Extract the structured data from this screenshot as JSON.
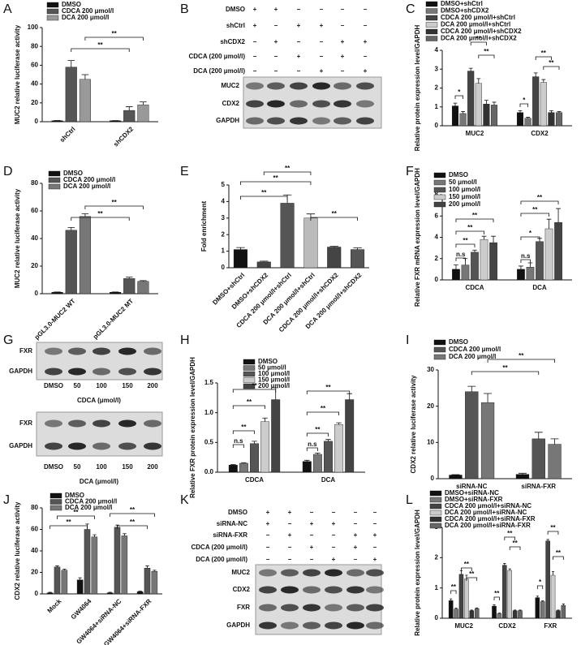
{
  "chart_data": [
    {
      "type": "bar",
      "label": "A",
      "ylabel": "MUC2 relative luciferase activity",
      "categories": [
        "shCtrl",
        "shCDX2"
      ],
      "series": [
        {
          "name": "DMSO",
          "color": "#111111",
          "values": [
            1,
            1
          ],
          "errors": [
            0.3,
            0.2
          ]
        },
        {
          "name": "CDCA 200 μmol/l",
          "color": "#555555",
          "values": [
            58,
            12
          ],
          "errors": [
            7,
            4
          ]
        },
        {
          "name": "DCA 200 μmol/l",
          "color": "#999999",
          "values": [
            45,
            18
          ],
          "errors": [
            5,
            3
          ]
        }
      ],
      "ylim": [
        0,
        100
      ],
      "yticks": [
        0,
        20,
        40,
        60,
        80,
        100
      ],
      "annotations": [
        "**",
        "**"
      ]
    },
    {
      "type": "blot",
      "label": "B",
      "treatments": [
        {
          "name": "DMSO",
          "signs": [
            "+",
            "+",
            "−",
            "−",
            "−",
            "−"
          ]
        },
        {
          "name": "shCtrl",
          "signs": [
            "+",
            "−",
            "+",
            "+",
            "−",
            "−"
          ]
        },
        {
          "name": "shCDX2",
          "signs": [
            "−",
            "+",
            "−",
            "−",
            "+",
            "+"
          ]
        },
        {
          "name": "CDCA  (200 μmol/l)",
          "signs": [
            "−",
            "−",
            "+",
            "−",
            "+",
            "−"
          ]
        },
        {
          "name": "DCA  (200 μmol/l)",
          "signs": [
            "−",
            "−",
            "−",
            "+",
            "−",
            "+"
          ]
        }
      ],
      "blots": [
        {
          "bands": [
            "MUC2",
            "CDX2",
            "GAPDH"
          ]
        }
      ]
    },
    {
      "type": "bar",
      "label": "C",
      "ylabel": "Relative protein expression level/GAPDH",
      "categories": [
        "MUC2",
        "CDX2"
      ],
      "series": [
        {
          "name": "DMSO+shCtrl",
          "color": "#111111",
          "values": [
            1.05,
            0.7
          ],
          "errors": [
            0.15,
            0.1
          ]
        },
        {
          "name": "DMSO+shCDX2",
          "color": "#777777",
          "values": [
            0.65,
            0.4
          ],
          "errors": [
            0.1,
            0.05
          ]
        },
        {
          "name": "CDCA 200 μmol/l+shCtrl",
          "color": "#444444",
          "values": [
            2.9,
            2.6
          ],
          "errors": [
            0.15,
            0.2
          ]
        },
        {
          "name": "DCA 200 μmol/l+shCtrl",
          "color": "#cccccc",
          "values": [
            2.25,
            2.3
          ],
          "errors": [
            0.25,
            0.15
          ]
        },
        {
          "name": "CDCA 200 μmol/l+shCDX2",
          "color": "#333333",
          "values": [
            1.15,
            0.7
          ],
          "errors": [
            0.2,
            0.1
          ]
        },
        {
          "name": "DCA 200 μmol/l+shCDX2",
          "color": "#666666",
          "values": [
            1.1,
            0.7
          ],
          "errors": [
            0.15,
            0.05
          ]
        }
      ],
      "ylim": [
        0,
        4
      ],
      "yticks": [
        0,
        1,
        2,
        3,
        4
      ],
      "annotations": [
        "*",
        "**",
        "**",
        "*",
        "**",
        "**"
      ]
    },
    {
      "type": "bar",
      "label": "D",
      "ylabel": "MUC2 relative luciferase activity",
      "categories": [
        "pGL3.0-MUC2 WT",
        "pGL3.0-MUC2 MT"
      ],
      "series": [
        {
          "name": "DMSO",
          "color": "#111111",
          "values": [
            1,
            1
          ],
          "errors": [
            0.2,
            0.2
          ]
        },
        {
          "name": "CDCA 200 μmol/l",
          "color": "#555555",
          "values": [
            46,
            11
          ],
          "errors": [
            2,
            1
          ]
        },
        {
          "name": "DCA 200 μmol/l",
          "color": "#777777",
          "values": [
            56,
            9
          ],
          "errors": [
            2,
            0.5
          ]
        }
      ],
      "ylim": [
        0,
        80
      ],
      "yticks": [
        0,
        20,
        40,
        60,
        80
      ],
      "annotations": [
        "**",
        "**"
      ]
    },
    {
      "type": "bar",
      "label": "E",
      "ylabel": "Fold enrichment",
      "categories": [
        "DMSO+shCtrl",
        "DMSO+shCDX2",
        "CDCA 200 μmol/l+shCtrl",
        "DCA 200 μmol/l+shCtrl",
        "CDCA 200 μmol/l+shCDX2",
        "DCA 200 μmol/l+shCDX2"
      ],
      "values": [
        1.1,
        0.35,
        3.9,
        3.0,
        1.25,
        1.1
      ],
      "errors": [
        0.12,
        0.05,
        0.5,
        0.25,
        0.05,
        0.1
      ],
      "colors": [
        "#111111",
        "#444444",
        "#555555",
        "#bbbbbb",
        "#444444",
        "#555555"
      ],
      "ylim": [
        0,
        5
      ],
      "yticks": [
        0,
        1,
        2,
        3,
        4,
        5
      ],
      "annotations": [
        "**",
        "**",
        "**",
        "**"
      ]
    },
    {
      "type": "bar",
      "label": "F",
      "ylabel": "Relative FXR mRNA expression level/GAPDH",
      "categories": [
        "CDCA",
        "DCA"
      ],
      "series": [
        {
          "name": "DMSO",
          "color": "#111111",
          "values": [
            1,
            1
          ],
          "errors": [
            0.4,
            0.3
          ]
        },
        {
          "name": "50 μmol/l",
          "color": "#777777",
          "values": [
            1.4,
            1.2
          ],
          "errors": [
            0.6,
            0.4
          ]
        },
        {
          "name": "100 μmol/l",
          "color": "#555555",
          "values": [
            2.6,
            3.6
          ],
          "errors": [
            0.2,
            0.3
          ]
        },
        {
          "name": "150 μmol/l",
          "color": "#cccccc",
          "values": [
            3.8,
            4.8
          ],
          "errors": [
            0.3,
            0.9
          ]
        },
        {
          "name": "200 μmol/l",
          "color": "#444444",
          "values": [
            3.5,
            5.4
          ],
          "errors": [
            0.6,
            1.3
          ]
        }
      ],
      "ylim": [
        0,
        8
      ],
      "yticks": [
        0,
        2,
        4,
        6,
        8
      ],
      "annotations": [
        "n.s",
        "**",
        "**",
        "**",
        "n.s",
        "*",
        "**",
        "**"
      ]
    },
    {
      "type": "blot",
      "label": "G",
      "blots": [
        {
          "bands": [
            "FXR",
            "GAPDH"
          ],
          "lanes": [
            "DMSO",
            "50",
            "100",
            "150",
            "200"
          ],
          "xlabel": "CDCA  (μmol/l)"
        },
        {
          "bands": [
            "FXR",
            "GAPDH"
          ],
          "lanes": [
            "DMSO",
            "50",
            "100",
            "150",
            "200"
          ],
          "xlabel": "DCA  (μmol/l)"
        }
      ]
    },
    {
      "type": "bar",
      "label": "H",
      "ylabel": "Relative FXR protein  expression level/GAPDH",
      "categories": [
        "CDCA",
        "DCA"
      ],
      "series": [
        {
          "name": "DMSO",
          "color": "#111111",
          "values": [
            0.12,
            0.18
          ],
          "errors": [
            0.01,
            0.02
          ]
        },
        {
          "name": "50 μmol/l",
          "color": "#777777",
          "values": [
            0.15,
            0.3
          ],
          "errors": [
            0.01,
            0.02
          ]
        },
        {
          "name": "100 μmol/l",
          "color": "#555555",
          "values": [
            0.48,
            0.52
          ],
          "errors": [
            0.04,
            0.03
          ]
        },
        {
          "name": "150 μmol/l",
          "color": "#cccccc",
          "values": [
            0.85,
            0.8
          ],
          "errors": [
            0.06,
            0.03
          ]
        },
        {
          "name": "200 μmol/l",
          "color": "#444444",
          "values": [
            1.22,
            1.22
          ],
          "errors": [
            0.2,
            0.1
          ]
        }
      ],
      "ylim": [
        0,
        1.5
      ],
      "yticks": [
        {
          "value": 0,
          "label": "0.0"
        },
        0.5,
        {
          "value": 1,
          "label": "1.0"
        },
        1.5
      ],
      "annotations": [
        "n.s",
        "**",
        "**",
        "**",
        "n.s",
        "**",
        "**",
        "**"
      ]
    },
    {
      "type": "bar",
      "label": "I",
      "ylabel": "CDX2 relative luciferase activity",
      "categories": [
        "siRNA-NC",
        "siRNA-FXR"
      ],
      "series": [
        {
          "name": "DMSO",
          "color": "#111111",
          "values": [
            1,
            1.2
          ],
          "errors": [
            0.1,
            0.3
          ]
        },
        {
          "name": "CDCA 200 μmol/l",
          "color": "#555555",
          "values": [
            24,
            11
          ],
          "errors": [
            1.5,
            1.8
          ]
        },
        {
          "name": "DCA 200 μmol/l",
          "color": "#777777",
          "values": [
            21,
            9.5
          ],
          "errors": [
            2.5,
            1.5
          ]
        }
      ],
      "ylim": [
        0,
        30
      ],
      "yticks": [
        0,
        10,
        20,
        30
      ],
      "annotations": [
        "**",
        "**"
      ]
    },
    {
      "type": "bar",
      "label": "J",
      "ylabel": "CDX2 relative luciferase activity",
      "categories": [
        "Mock",
        "GW4064",
        "GW4064+siRNA-NC",
        "GW4064+siRNA-FXR"
      ],
      "series": [
        {
          "name": "DMSO",
          "color": "#111111",
          "values": [
            1,
            13,
            1,
            2
          ],
          "errors": [
            0.5,
            2,
            0.5,
            0.5
          ]
        },
        {
          "name": "CDCA 200 μmol/l",
          "color": "#555555",
          "values": [
            25,
            60,
            62,
            24
          ],
          "errors": [
            1,
            5,
            2,
            2
          ]
        },
        {
          "name": "DCA 200 μmol/l",
          "color": "#777777",
          "values": [
            22,
            53,
            54,
            21
          ],
          "errors": [
            1,
            2,
            2,
            1
          ]
        }
      ],
      "ylim": [
        0,
        80
      ],
      "yticks": [
        0,
        20,
        40,
        60,
        80
      ],
      "annotations": [
        "**",
        "**",
        "**",
        "**"
      ]
    },
    {
      "type": "blot",
      "label": "K",
      "treatments": [
        {
          "name": "DMSO",
          "signs": [
            "+",
            "+",
            "−",
            "−",
            "−",
            "−"
          ]
        },
        {
          "name": "siRNA-NC",
          "signs": [
            "+",
            "−",
            "+",
            "+",
            "−",
            "−"
          ]
        },
        {
          "name": "siRNA-FXR",
          "signs": [
            "−",
            "+",
            "−",
            "−",
            "+",
            "+"
          ]
        },
        {
          "name": "CDCA  (200 μmol/l)",
          "signs": [
            "−",
            "−",
            "+",
            "−",
            "+",
            "−"
          ]
        },
        {
          "name": "DCA  (200 μmol/l)",
          "signs": [
            "−",
            "−",
            "−",
            "+",
            "−",
            "+"
          ]
        }
      ],
      "blots": [
        {
          "bands": [
            "MUC2",
            "CDX2",
            "FXR",
            "GAPDH"
          ]
        }
      ]
    },
    {
      "type": "bar",
      "label": "L",
      "ylabel": "Relative protein expression level/GAPDH",
      "categories": [
        "MUC2",
        "CDX2",
        "FXR"
      ],
      "series": [
        {
          "name": "DMSO+siRNA-NC",
          "color": "#111111",
          "values": [
            0.58,
            0.4,
            0.68
          ],
          "errors": [
            0.06,
            0.04,
            0.05
          ]
        },
        {
          "name": "DMSO+siRNA-FXR",
          "color": "#777777",
          "values": [
            0.3,
            0.15,
            0.55
          ],
          "errors": [
            0.03,
            0.02,
            0.03
          ]
        },
        {
          "name": "CDCA 200 μmol/l+siRNA-NC",
          "color": "#444444",
          "values": [
            1.45,
            1.75,
            2.55
          ],
          "errors": [
            0.12,
            0.06,
            0.05
          ]
        },
        {
          "name": "DCA 200 μmol/l+siRNA-NC",
          "color": "#cccccc",
          "values": [
            1.3,
            1.58,
            1.42
          ],
          "errors": [
            0.12,
            0.05,
            0.12
          ]
        },
        {
          "name": "CDCA 200 μmol/l+siRNA-FXR",
          "color": "#333333",
          "values": [
            0.25,
            0.25,
            0.25
          ],
          "errors": [
            0.02,
            0.02,
            0.02
          ]
        },
        {
          "name": "DCA 200 μmol/l+siRNA-FXR",
          "color": "#666666",
          "values": [
            0.32,
            0.25,
            0.42
          ],
          "errors": [
            0.02,
            0.02,
            0.05
          ]
        }
      ],
      "ylim": [
        0,
        3
      ],
      "yticks": [
        0,
        1,
        2,
        3
      ],
      "annotations": [
        "**",
        "**",
        "**",
        "**",
        "**",
        "**",
        "*",
        "**",
        "**"
      ]
    }
  ]
}
